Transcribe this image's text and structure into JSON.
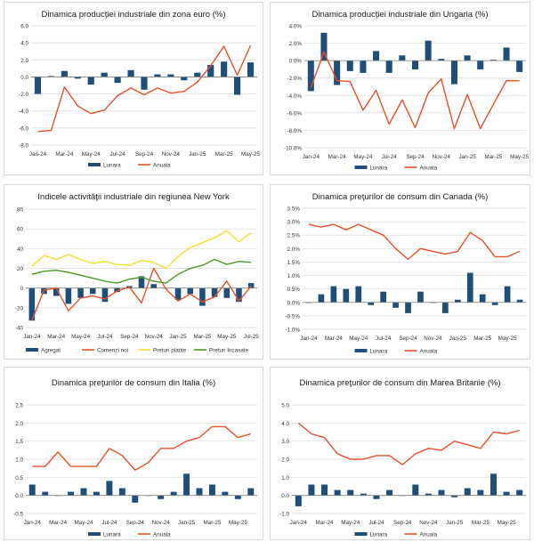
{
  "colors": {
    "bar": "#1f4e79",
    "anual": "#e8502a",
    "pret_platite": "#f2df2e",
    "pret_incasate": "#4e9a28",
    "grid": "#d9d9d9",
    "axis": "#333333"
  },
  "chart_data": [
    {
      "type": "bar",
      "title": "Dinamica producţiei industriale din zona euro (%)",
      "categories": [
        "Jan-24",
        "Feb-24",
        "Mar-24",
        "Apr-24",
        "May-24",
        "Jun-24",
        "Jul-24",
        "Aug-24",
        "Sep-24",
        "Oct-24",
        "Nov-24",
        "Dec-24",
        "Jan-25",
        "Feb-25",
        "Mar-25",
        "Apr-25",
        "May-25"
      ],
      "tick_labels": [
        "Jan-24",
        "Mar-24",
        "May-24",
        "Jul-24",
        "Sep-24",
        "Nov-24",
        "Jan-25",
        "Mar-25",
        "May-25"
      ],
      "ylim": [
        -8,
        6
      ],
      "yticks": [
        -8,
        -6,
        -4,
        -2,
        0,
        2,
        4,
        6
      ],
      "ytick_labels": [
        "-8.0",
        "-6.0",
        "-4.0",
        "-2.0",
        "0.0",
        "2.0",
        "4.0",
        "6.0"
      ],
      "series": [
        {
          "name": "Lunara",
          "kind": "bar",
          "values": [
            -2.0,
            0.1,
            0.7,
            -0.2,
            -0.9,
            0.5,
            -0.7,
            0.8,
            -1.5,
            0.3,
            0.3,
            -0.4,
            0.5,
            1.4,
            1.8,
            -2.1,
            1.7
          ]
        },
        {
          "name": "Anuala",
          "kind": "line",
          "values": [
            -6.4,
            -6.3,
            -1.2,
            -3.4,
            -4.3,
            -3.9,
            -2.2,
            -1.3,
            -2.1,
            -1.3,
            -1.9,
            -1.7,
            -0.6,
            1.3,
            3.6,
            0.2,
            3.7
          ]
        }
      ],
      "legend": [
        "Lunara",
        "Anuala"
      ]
    },
    {
      "type": "bar",
      "title": "Dinamica producţiei industriale din Ungaria (%)",
      "categories": [
        "Jan-24",
        "Feb-24",
        "Mar-24",
        "Apr-24",
        "May-24",
        "Jun-24",
        "Jul-24",
        "Aug-24",
        "Sep-24",
        "Oct-24",
        "Nov-24",
        "Dec-24",
        "Jan-25",
        "Feb-25",
        "Mar-25",
        "Apr-25",
        "May-25"
      ],
      "tick_labels": [
        "Jan-24",
        "Mar-24",
        "May-24",
        "Jul-24",
        "Sep-24",
        "Nov-24",
        "Jan-25",
        "Mar-25",
        "May-25"
      ],
      "ylim": [
        -10,
        4
      ],
      "yticks": [
        -10,
        -8,
        -6,
        -4,
        -2,
        0,
        2,
        4
      ],
      "ytick_labels": [
        "-10.0%",
        "-8.0%",
        "-6.0%",
        "-4.0%",
        "-2.0%",
        "0.0%",
        "2.0%",
        "4.0%"
      ],
      "series": [
        {
          "name": "Lunara",
          "kind": "bar",
          "values": [
            -3.5,
            3.2,
            -2.8,
            -1.2,
            -1.4,
            1.1,
            -1.4,
            0.6,
            -1.0,
            2.3,
            0.2,
            -2.7,
            0.6,
            -1.0,
            0.1,
            1.5,
            -1.3
          ]
        },
        {
          "name": "Anuala",
          "kind": "line",
          "values": [
            -3.1,
            1.0,
            -2.3,
            -2.4,
            -5.7,
            -3.4,
            -7.3,
            -4.5,
            -7.7,
            -3.7,
            -2.1,
            -7.8,
            -3.9,
            -7.8,
            -5.0,
            -2.3,
            -2.3
          ]
        }
      ],
      "legend": [
        "Lunara",
        "Anuala"
      ]
    },
    {
      "type": "bar",
      "title": "Indicele activităţii industriale din regiunea New York",
      "categories": [
        "Jan-24",
        "Feb-24",
        "Mar-24",
        "Apr-24",
        "May-24",
        "Jun-24",
        "Jul-24",
        "Aug-24",
        "Sep-24",
        "Oct-24",
        "Nov-24",
        "Dec-24",
        "Jan-25",
        "Feb-25",
        "Mar-25",
        "Apr-25",
        "May-25",
        "Jun-25",
        "Jul-25"
      ],
      "tick_labels": [
        "Jan-24",
        "Mar-24",
        "May-24",
        "Jul-24",
        "Sep-24",
        "Nov-24",
        "Jan-25",
        "Mar-25",
        "May-25",
        "Jul-25"
      ],
      "ylim": [
        -40,
        80
      ],
      "yticks": [
        -40,
        -20,
        0,
        20,
        40,
        60,
        80
      ],
      "ytick_labels": [
        "-40",
        "-20",
        "0",
        "20",
        "40",
        "60",
        "80"
      ],
      "series": [
        {
          "name": "Agregat",
          "kind": "bar",
          "values": [
            -33,
            -6,
            -8,
            -16,
            -10,
            -6,
            -14,
            -4,
            2,
            12,
            4,
            0,
            -12,
            -6,
            -18,
            -9,
            -10,
            -14,
            5
          ]
        },
        {
          "name": "Comenzi noi",
          "kind": "line",
          "values": [
            -33,
            -2,
            0,
            -23,
            -10,
            -8,
            -11,
            -3,
            1,
            -15,
            20,
            -1,
            -13,
            -6,
            -14,
            -9,
            7,
            -13,
            2
          ]
        },
        {
          "name": "Preturi platite",
          "kind": "line",
          "values": [
            22,
            33,
            29,
            34,
            29,
            25,
            27,
            24,
            23,
            28,
            26,
            20,
            32,
            41,
            46,
            51,
            58,
            47,
            56
          ]
        },
        {
          "name": "Preturi Incasate",
          "kind": "line",
          "values": [
            14,
            17,
            18,
            16,
            13,
            10,
            7,
            5,
            9,
            11,
            7,
            5,
            14,
            20,
            23,
            29,
            24,
            27,
            26
          ]
        }
      ],
      "legend": [
        "Agregat",
        "Comenzi noi",
        "Preturi platite",
        "Preturi Incasate"
      ]
    },
    {
      "type": "bar",
      "title": "Dinamica preţurilor de consum din Canada (%)",
      "categories": [
        "Jan-24",
        "Feb-24",
        "Mar-24",
        "Apr-24",
        "May-24",
        "Jun-24",
        "Jul-24",
        "Aug-24",
        "Sep-24",
        "Oct-24",
        "Nov-24",
        "Dec-24",
        "Jan-25",
        "Feb-25",
        "Mar-25",
        "Apr-25",
        "May-25",
        "Jun-25"
      ],
      "tick_labels": [
        "Jan-24",
        "Mar-24",
        "May-24",
        "Jul-24",
        "Sep-24",
        "Nov-24",
        "Jan-25",
        "Mar-25",
        "May-25"
      ],
      "ylim": [
        -1.0,
        3.5
      ],
      "yticks": [
        -1.0,
        -0.5,
        0,
        0.5,
        1.0,
        1.5,
        2.0,
        2.5,
        3.0,
        3.5
      ],
      "ytick_labels": [
        "-1.0%",
        "-0.5%",
        "0.0%",
        "0.5%",
        "1.0%",
        "1.5%",
        "2.0%",
        "2.5%",
        "3.0%",
        "3.5%"
      ],
      "series": [
        {
          "name": "Lunara",
          "kind": "bar",
          "values": [
            0.0,
            0.3,
            0.6,
            0.5,
            0.6,
            -0.1,
            0.4,
            -0.2,
            -0.4,
            0.4,
            0.0,
            -0.4,
            0.1,
            1.1,
            0.3,
            -0.1,
            0.6,
            0.1
          ]
        },
        {
          "name": "Anuala",
          "kind": "line",
          "values": [
            2.9,
            2.8,
            2.9,
            2.7,
            2.9,
            2.7,
            2.5,
            2.0,
            1.6,
            2.0,
            1.9,
            1.8,
            1.9,
            2.6,
            2.3,
            1.7,
            1.7,
            1.9
          ]
        }
      ],
      "legend": [
        "Lunara",
        "Anuala"
      ]
    },
    {
      "type": "bar",
      "title": "Dinamica preţurilor de consum din Italia (%)",
      "categories": [
        "Jan-24",
        "Feb-24",
        "Mar-24",
        "Apr-24",
        "May-24",
        "Jun-24",
        "Jul-24",
        "Aug-24",
        "Sep-24",
        "Oct-24",
        "Nov-24",
        "Dec-24",
        "Jan-25",
        "Feb-25",
        "Mar-25",
        "Apr-25",
        "May-25",
        "Jun-25"
      ],
      "tick_labels": [
        "Jan-24",
        "Mar-24",
        "May-24",
        "Jul-24",
        "Sep-24",
        "Nov-24",
        "Jan-25",
        "Mar-25",
        "May-25"
      ],
      "ylim": [
        -0.5,
        2.5
      ],
      "yticks": [
        -0.5,
        0,
        0.5,
        1.0,
        1.5,
        2.0,
        2.5
      ],
      "ytick_labels": [
        "-0.5",
        "0.0",
        "0.5",
        "1.0",
        "1.5",
        "2.0",
        "2.5"
      ],
      "series": [
        {
          "name": "Lunara",
          "kind": "bar",
          "values": [
            0.3,
            0.1,
            0.0,
            0.1,
            0.2,
            0.1,
            0.4,
            0.2,
            -0.2,
            0.0,
            -0.1,
            0.1,
            0.6,
            0.2,
            0.3,
            0.1,
            -0.1,
            0.2
          ]
        },
        {
          "name": "Anuala",
          "kind": "line",
          "values": [
            0.8,
            0.8,
            1.2,
            0.8,
            0.8,
            0.8,
            1.3,
            1.1,
            0.7,
            0.9,
            1.3,
            1.3,
            1.5,
            1.6,
            1.9,
            1.9,
            1.6,
            1.7
          ]
        }
      ],
      "legend": [
        "Lunara",
        "Anuala"
      ]
    },
    {
      "type": "bar",
      "title": "Dinamica preţurilor de consum din Marea Britanie (%)",
      "categories": [
        "Jan-24",
        "Feb-24",
        "Mar-24",
        "Apr-24",
        "May-24",
        "Jun-24",
        "Jul-24",
        "Aug-24",
        "Sep-24",
        "Oct-24",
        "Nov-24",
        "Dec-24",
        "Jan-25",
        "Feb-25",
        "Mar-25",
        "Apr-25",
        "May-25",
        "Jun-25"
      ],
      "tick_labels": [
        "Jan-24",
        "Mar-24",
        "May-24",
        "Jul-24",
        "Sep-24",
        "Nov-24",
        "Jan-25",
        "Mar-25",
        "May-25"
      ],
      "ylim": [
        -1.0,
        5.0
      ],
      "yticks": [
        -1.0,
        0,
        1.0,
        2.0,
        3.0,
        4.0,
        5.0
      ],
      "ytick_labels": [
        "-1.0",
        "0.0",
        "1.0",
        "2.0",
        "3.0",
        "4.0",
        "5.0"
      ],
      "series": [
        {
          "name": "Lunara",
          "kind": "bar",
          "values": [
            -0.6,
            0.6,
            0.6,
            0.3,
            0.3,
            0.1,
            -0.2,
            0.3,
            0.0,
            0.6,
            0.1,
            0.3,
            -0.1,
            0.4,
            0.3,
            1.2,
            0.2,
            0.3
          ]
        },
        {
          "name": "Anuala",
          "kind": "line",
          "values": [
            4.0,
            3.4,
            3.2,
            2.3,
            2.0,
            2.0,
            2.2,
            2.2,
            1.7,
            2.3,
            2.6,
            2.5,
            3.0,
            2.8,
            2.6,
            3.5,
            3.4,
            3.6
          ]
        }
      ],
      "legend": [
        "Lunara",
        "Anuala"
      ]
    }
  ]
}
